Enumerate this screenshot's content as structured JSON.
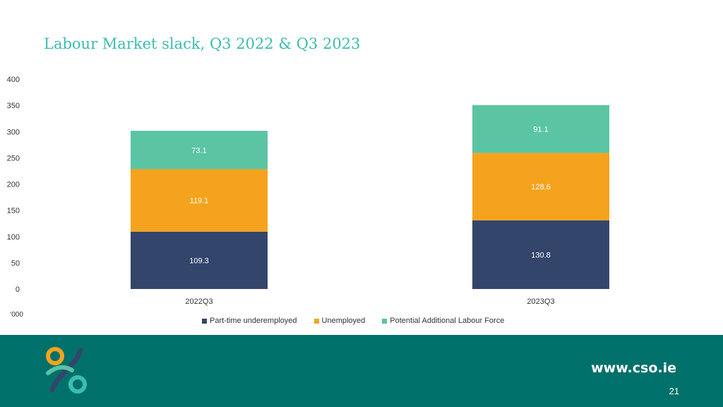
{
  "title": "Labour Market slack, Q3 2022 & Q3 2023",
  "unit_label": "‘000",
  "footer": {
    "site": "www.cso.ie",
    "page_number": "21"
  },
  "colors": {
    "part_time": "#34456b",
    "unemployed": "#f5a31e",
    "potential": "#5bc4a3",
    "accent": "#3dbcb0",
    "footer_bg": "#00706b"
  },
  "chart_data": {
    "type": "bar",
    "stacked": true,
    "categories": [
      "2022Q3",
      "2023Q3"
    ],
    "series": [
      {
        "name": "Part-time underemployed",
        "values": [
          109.3,
          130.8
        ],
        "color": "#34456b",
        "label_color": "#ffffff"
      },
      {
        "name": "Unemployed",
        "values": [
          119.1,
          128.6
        ],
        "color": "#f5a31e",
        "label_color": "#ffffff"
      },
      {
        "name": "Potential Additional Labour Force",
        "values": [
          73.1,
          91.1
        ],
        "color": "#5bc4a3",
        "label_color": "#ffffff"
      }
    ],
    "ylim": [
      0,
      400
    ],
    "yticks": [
      0,
      50,
      100,
      150,
      200,
      250,
      300,
      350,
      400
    ],
    "ytick_labels": [
      "0",
      "50",
      "100",
      "150",
      "200",
      "250",
      "300",
      "350",
      "400"
    ],
    "grid": false,
    "legend_position": "bottom"
  }
}
